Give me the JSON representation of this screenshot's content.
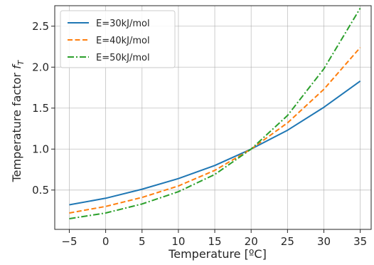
{
  "chart_data": {
    "type": "line",
    "xlabel": "Temperature [ºC]",
    "ylabel_main": "Temperature factor ",
    "ylabel_symbol": "f",
    "ylabel_sub": "T",
    "xlim": [
      -7.0,
      36.5
    ],
    "ylim": [
      0.02,
      2.75
    ],
    "xticks": [
      -5,
      0,
      5,
      10,
      15,
      20,
      25,
      30,
      35
    ],
    "xtick_labels": [
      "−5",
      "0",
      "5",
      "10",
      "15",
      "20",
      "25",
      "30",
      "35"
    ],
    "yticks": [
      0.5,
      1.0,
      1.5,
      2.0,
      2.5
    ],
    "ytick_labels": [
      "0.5",
      "1.0",
      "1.5",
      "2.0",
      "2.5"
    ],
    "grid": true,
    "legend_position": "top-left",
    "x": [
      -5,
      0,
      5,
      10,
      15,
      20,
      25,
      30,
      35
    ],
    "series": [
      {
        "name": "E=30kJ/mol",
        "color": "#1f77b4",
        "dash": "solid",
        "values": [
          0.32,
          0.4,
          0.51,
          0.64,
          0.8,
          1.0,
          1.23,
          1.51,
          1.83
        ]
      },
      {
        "name": "E=40kJ/mol",
        "color": "#ff7f0e",
        "dash": "dashed",
        "values": [
          0.22,
          0.3,
          0.41,
          0.55,
          0.74,
          1.0,
          1.32,
          1.73,
          2.24
        ]
      },
      {
        "name": "E=50kJ/mol",
        "color": "#2ca02c",
        "dash": "dashdot",
        "values": [
          0.15,
          0.22,
          0.33,
          0.48,
          0.69,
          1.0,
          1.41,
          1.98,
          2.72
        ]
      }
    ]
  }
}
